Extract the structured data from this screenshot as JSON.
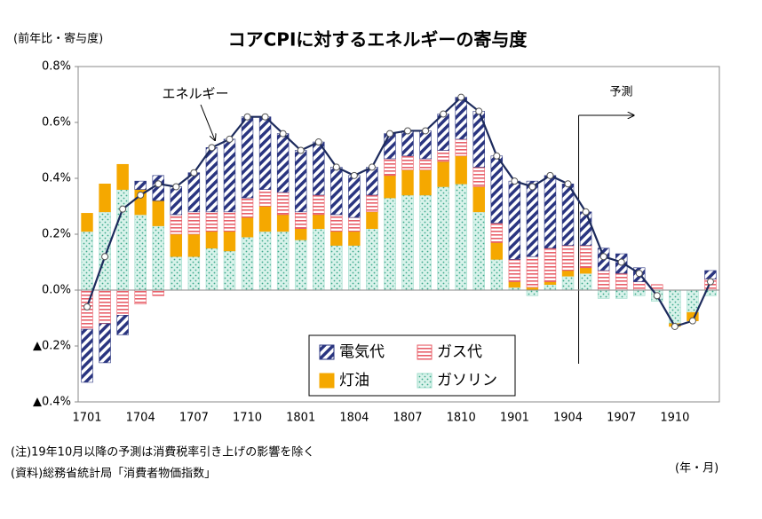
{
  "chart_data": {
    "type": "stacked-bar-line",
    "title": "コアCPIに対するエネルギーの寄与度",
    "unit_label": "(前年比・寄与度)",
    "x_axis_label": "(年・月)",
    "notes": [
      "(注)19年10月以降の予測は消費税率引き上げの影響を除く",
      "(資料)総務省統計局「消費者物価指数」"
    ],
    "forecast_label": "予測",
    "categories": [
      "1701",
      null,
      null,
      "1704",
      null,
      null,
      "1707",
      null,
      null,
      "1710",
      null,
      null,
      "1801",
      null,
      null,
      "1804",
      null,
      null,
      "1807",
      null,
      null,
      "1810",
      null,
      null,
      "1901",
      null,
      null,
      "1904",
      null,
      null,
      "1907",
      null,
      null,
      "1910",
      null,
      null
    ],
    "ylim": [
      -0.4,
      0.8
    ],
    "yticks": [
      {
        "value": -0.4,
        "label": "▲0.4%"
      },
      {
        "value": -0.2,
        "label": "▲0.2%"
      },
      {
        "value": 0,
        "label": "0.0%"
      },
      {
        "value": 0.2,
        "label": "0.2%"
      },
      {
        "value": 0.4,
        "label": "0.4%"
      },
      {
        "value": 0.6,
        "label": "0.6%"
      },
      {
        "value": 0.8,
        "label": "0.8%"
      }
    ],
    "grid": false,
    "legend": "bottom-center",
    "series": [
      {
        "name": "ガソリン",
        "color": "#9fdccb",
        "values": [
          0.21,
          0.28,
          0.36,
          0.27,
          0.23,
          0.12,
          0.12,
          0.15,
          0.14,
          0.19,
          0.21,
          0.21,
          0.18,
          0.22,
          0.16,
          0.16,
          0.22,
          0.33,
          0.34,
          0.34,
          0.37,
          0.38,
          0.28,
          0.11,
          0.01,
          -0.02,
          0.02,
          0.05,
          0.06,
          -0.03,
          -0.03,
          -0.02,
          -0.04,
          -0.12,
          -0.08,
          -0.02
        ]
      },
      {
        "name": "灯油",
        "color": "#f5a800",
        "values": [
          0.065,
          0.1,
          0.09,
          0.09,
          0.09,
          0.08,
          0.08,
          0.06,
          0.07,
          0.07,
          0.09,
          0.06,
          0.04,
          0.05,
          0.05,
          0.05,
          0.06,
          0.08,
          0.09,
          0.09,
          0.09,
          0.1,
          0.09,
          0.06,
          0.02,
          0.01,
          0.01,
          0.02,
          0.02,
          0,
          0,
          0,
          0,
          -0.01,
          -0.03,
          0
        ]
      },
      {
        "name": "ガス代",
        "color": "#e8606a",
        "values": [
          -0.14,
          -0.12,
          -0.09,
          -0.05,
          -0.02,
          0.07,
          0.08,
          0.07,
          0.07,
          0.07,
          0.06,
          0.08,
          0.06,
          0.07,
          0.06,
          0.05,
          0.06,
          0.06,
          0.05,
          0.04,
          0.04,
          0.06,
          0.07,
          0.07,
          0.08,
          0.11,
          0.12,
          0.09,
          0.08,
          0.07,
          0.06,
          0.03,
          0.02,
          0,
          0,
          0.04
        ]
      },
      {
        "name": "電気代",
        "color": "#2a3580",
        "values": [
          -0.19,
          -0.14,
          -0.07,
          0.03,
          0.09,
          0.1,
          0.14,
          0.23,
          0.26,
          0.29,
          0.26,
          0.21,
          0.22,
          0.19,
          0.17,
          0.15,
          0.1,
          0.09,
          0.09,
          0.1,
          0.13,
          0.15,
          0.2,
          0.24,
          0.28,
          0.27,
          0.26,
          0.22,
          0.12,
          0.08,
          0.07,
          0.05,
          0,
          0,
          0,
          0.03
        ]
      }
    ],
    "line": {
      "name": "エネルギー",
      "color": "#1c2a5c",
      "values": [
        -0.06,
        0.12,
        0.29,
        0.34,
        0.38,
        0.37,
        0.42,
        0.51,
        0.54,
        0.62,
        0.62,
        0.56,
        0.5,
        0.53,
        0.44,
        0.41,
        0.44,
        0.56,
        0.57,
        0.57,
        0.63,
        0.69,
        0.64,
        0.48,
        0.39,
        0.37,
        0.41,
        0.38,
        0.28,
        0.12,
        0.1,
        0.06,
        -0.02,
        -0.13,
        -0.11,
        0.03
      ]
    }
  }
}
